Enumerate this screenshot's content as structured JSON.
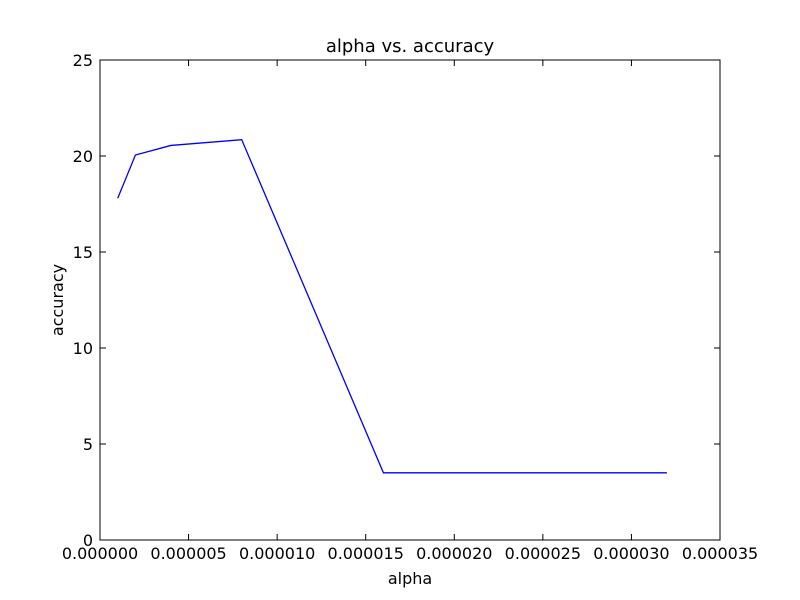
{
  "chart_data": {
    "type": "line",
    "title": "alpha vs. accuracy",
    "xlabel": "alpha",
    "ylabel": "accuracy",
    "xlim": [
      0,
      3.5e-05
    ],
    "ylim": [
      0,
      25
    ],
    "x_ticks": [
      {
        "value": 0,
        "label": "0.000000"
      },
      {
        "value": 5e-06,
        "label": "0.000005"
      },
      {
        "value": 1e-05,
        "label": "0.000010"
      },
      {
        "value": 1.5e-05,
        "label": "0.000015"
      },
      {
        "value": 2e-05,
        "label": "0.000020"
      },
      {
        "value": 2.5e-05,
        "label": "0.000025"
      },
      {
        "value": 3e-05,
        "label": "0.000030"
      },
      {
        "value": 3.5e-05,
        "label": "0.000035"
      }
    ],
    "y_ticks": [
      {
        "value": 0,
        "label": "0"
      },
      {
        "value": 5,
        "label": "5"
      },
      {
        "value": 10,
        "label": "10"
      },
      {
        "value": 15,
        "label": "15"
      },
      {
        "value": 20,
        "label": "20"
      },
      {
        "value": 25,
        "label": "25"
      }
    ],
    "grid": false,
    "series": [
      {
        "color": "#0000ff",
        "x": [
          1e-06,
          2e-06,
          4e-06,
          8e-06,
          1.6e-05,
          3.2e-05
        ],
        "y": [
          17.8,
          20.05,
          20.55,
          20.85,
          3.5,
          3.5
        ]
      }
    ]
  }
}
